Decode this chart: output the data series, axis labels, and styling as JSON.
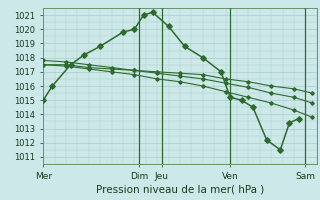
{
  "xlabel": "Pression niveau de la mer( hPa )",
  "background_color": "#cce8e8",
  "grid_color": "#aacccc",
  "line_color": "#2d6a2d",
  "ylim": [
    1010.5,
    1021.5
  ],
  "yticks": [
    1011,
    1012,
    1013,
    1014,
    1015,
    1016,
    1017,
    1018,
    1019,
    1020,
    1021
  ],
  "series": [
    {
      "x": [
        0,
        0.4,
        1.2,
        1.8,
        2.5,
        3.5,
        4.0,
        4.4,
        4.8,
        5.5,
        6.2,
        7.0,
        7.8,
        8.2,
        8.7,
        9.2,
        9.8,
        10.4,
        10.8,
        11.2
      ],
      "y": [
        1015.0,
        1016.0,
        1017.5,
        1018.2,
        1018.8,
        1019.8,
        1020.0,
        1021.0,
        1021.2,
        1020.2,
        1018.8,
        1018.0,
        1017.0,
        1015.2,
        1015.0,
        1014.5,
        1012.2,
        1011.5,
        1013.4,
        1013.7
      ]
    },
    {
      "x": [
        0,
        1,
        2,
        3,
        4,
        5,
        6,
        7,
        8,
        9,
        10,
        11,
        11.8
      ],
      "y": [
        1017.5,
        1017.5,
        1017.3,
        1017.2,
        1017.1,
        1017.0,
        1016.9,
        1016.8,
        1016.5,
        1016.3,
        1016.0,
        1015.8,
        1015.5
      ]
    },
    {
      "x": [
        0,
        1,
        2,
        3,
        4,
        5,
        6,
        7,
        8,
        9,
        10,
        11,
        11.8
      ],
      "y": [
        1017.8,
        1017.7,
        1017.5,
        1017.3,
        1017.1,
        1016.9,
        1016.7,
        1016.5,
        1016.2,
        1015.9,
        1015.5,
        1015.2,
        1014.8
      ]
    },
    {
      "x": [
        0,
        1,
        2,
        3,
        4,
        5,
        6,
        7,
        8,
        9,
        10,
        11,
        11.8
      ],
      "y": [
        1017.5,
        1017.4,
        1017.2,
        1017.0,
        1016.8,
        1016.5,
        1016.3,
        1016.0,
        1015.6,
        1015.2,
        1014.8,
        1014.3,
        1013.8
      ]
    }
  ],
  "xlim": [
    0,
    12
  ],
  "xtick_positions": [
    0,
    4.2,
    5.2,
    8.2,
    11.5
  ],
  "xtick_labels": [
    "Mer",
    "Dim",
    "Jeu",
    "Ven",
    "Sam"
  ],
  "vline_positions": [
    4.2,
    5.2,
    8.2,
    11.5
  ]
}
